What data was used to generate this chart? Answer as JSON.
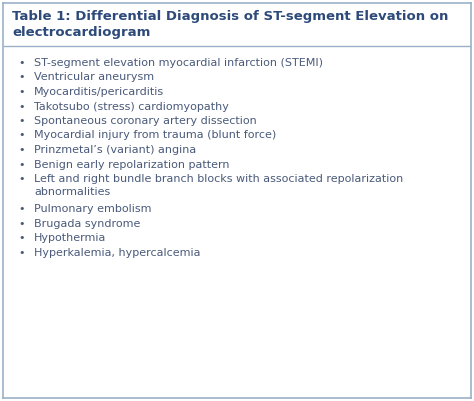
{
  "title_line1": "Table 1: Differential Diagnosis of ST-segment Elevation on",
  "title_line2": "electrocardiogram",
  "title_color": "#2d4a7a",
  "title_fontsize": 9.5,
  "bullet_items": [
    "ST-segment elevation myocardial infarction (STEMI)",
    "Ventricular aneurysm",
    "Myocarditis/pericarditis",
    "Takotsubo (stress) cardiomyopathy",
    "Spontaneous coronary artery dissection",
    "Myocardial injury from trauma (blunt force)",
    "Prinzmetal’s (variant) angina",
    "Benign early repolarization pattern",
    "Left and right bundle branch blocks with associated repolarization\nabnormalities",
    "Pulmonary embolism",
    "Brugada syndrome",
    "Hypothermia",
    "Hyperkalemia, hypercalcemia"
  ],
  "text_color": "#4a5a7a",
  "bullet_color": "#4a5a7a",
  "text_fontsize": 8.0,
  "background_color": "#ffffff",
  "border_color": "#9ab0c8",
  "header_line_color": "#9ab0c8",
  "bottom_line_color": "#9ab0c8",
  "fig_width": 4.74,
  "fig_height": 4.01,
  "dpi": 100
}
